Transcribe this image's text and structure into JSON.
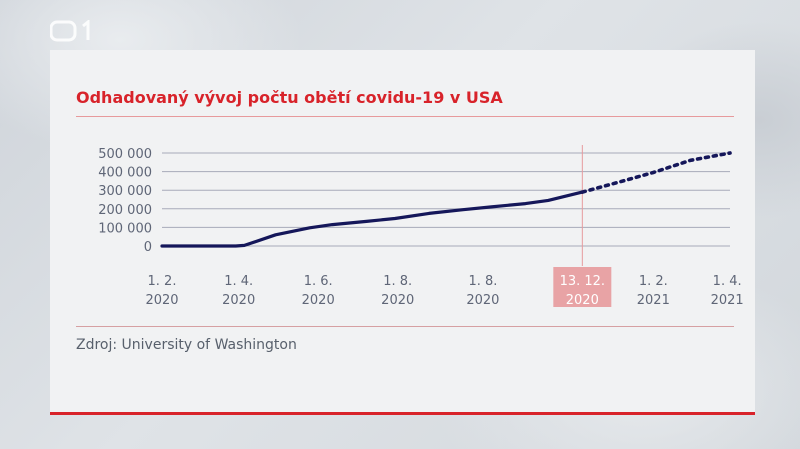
{
  "brand": {
    "logo_icon": "ct1-logo-icon"
  },
  "source_text": "Zdroj: University of Washington",
  "colors": {
    "accent": "#d8232a",
    "line": "#15175a",
    "highlight": "#e8a3a5",
    "tick_text": "#5f6677"
  },
  "chart_data": {
    "type": "line",
    "title": "Odhadovaný vývoj počtu obětí covidu-19 v USA",
    "xlabel": "",
    "ylabel": "",
    "ylim": [
      0,
      500000
    ],
    "yticks": [
      {
        "value": 0,
        "label": "0"
      },
      {
        "value": 100000,
        "label": "100 000"
      },
      {
        "value": 200000,
        "label": "200 000"
      },
      {
        "value": 300000,
        "label": "300 000"
      },
      {
        "value": 400000,
        "label": "400 000"
      },
      {
        "value": 500000,
        "label": "500 000"
      }
    ],
    "xticks": [
      {
        "t": 0.0,
        "label": [
          "1. 2.",
          "2020"
        ],
        "highlight": false
      },
      {
        "t": 0.135,
        "label": [
          "1. 4.",
          "2020"
        ],
        "highlight": false
      },
      {
        "t": 0.275,
        "label": [
          "1. 6.",
          "2020"
        ],
        "highlight": false
      },
      {
        "t": 0.415,
        "label": [
          "1. 8.",
          "2020"
        ],
        "highlight": false
      },
      {
        "t": 0.565,
        "label": [
          "1. 8.",
          "2020"
        ],
        "highlight": false
      },
      {
        "t": 0.74,
        "label": [
          "13. 12.",
          "2020"
        ],
        "highlight": true
      },
      {
        "t": 0.865,
        "label": [
          "1. 2.",
          "2021"
        ],
        "highlight": false
      },
      {
        "t": 0.995,
        "label": [
          "1. 4.",
          "2021"
        ],
        "highlight": false
      }
    ],
    "split_t": 0.74,
    "series": [
      {
        "style": "solid",
        "points": [
          [
            0.0,
            0
          ],
          [
            0.13,
            0
          ],
          [
            0.145,
            3000
          ],
          [
            0.2,
            60000
          ],
          [
            0.26,
            98000
          ],
          [
            0.3,
            115000
          ],
          [
            0.36,
            132000
          ],
          [
            0.41,
            148000
          ],
          [
            0.47,
            175000
          ],
          [
            0.53,
            195000
          ],
          [
            0.58,
            210000
          ],
          [
            0.64,
            228000
          ],
          [
            0.68,
            245000
          ],
          [
            0.74,
            290000
          ]
        ]
      },
      {
        "style": "dotted",
        "points": [
          [
            0.74,
            290000
          ],
          [
            0.8,
            340000
          ],
          [
            0.865,
            395000
          ],
          [
            0.93,
            460000
          ],
          [
            1.0,
            500000
          ]
        ]
      }
    ]
  }
}
